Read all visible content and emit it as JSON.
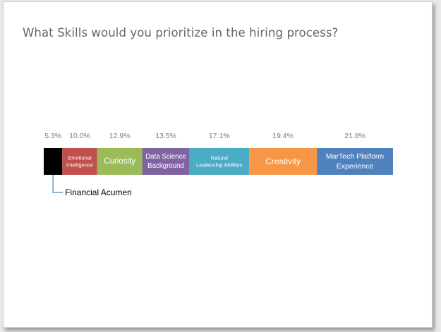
{
  "title": "What Skills would you prioritize in the hiring process?",
  "chart_data": {
    "type": "bar",
    "orientation": "horizontal-stacked-100",
    "title": "What Skills would you prioritize in the hiring process?",
    "categories": [
      "Financial Acumen",
      "Emotional Intelligence",
      "Curiosity",
      "Data Science Background",
      "Natural Leadership Abilities",
      "Creativity",
      "MarTech Platform Experience"
    ],
    "values": [
      5.3,
      10.0,
      12.9,
      13.5,
      17.1,
      19.4,
      21.8
    ],
    "value_labels": [
      "5.3%",
      "10.0%",
      "12.9%",
      "13.5%",
      "17.1%",
      "19.4%",
      "21.8%"
    ],
    "segment_label_lines": [
      [],
      [
        "Emotional",
        "Intelligence"
      ],
      [
        "Curiosity"
      ],
      [
        "Data Science",
        "Background"
      ],
      [
        "Natural",
        "Leadership Abilities"
      ],
      [
        "Creativity"
      ],
      [
        "MarTech Platform",
        "Experience"
      ]
    ],
    "colors": [
      "#000000",
      "#c0504d",
      "#9bbb59",
      "#8064a2",
      "#4bacc6",
      "#f79646",
      "#4f81bd"
    ],
    "callout": "Financial Acumen",
    "callout_color": "#4f81bd",
    "xlabel": "",
    "ylabel": "",
    "grid": false,
    "legend": "none"
  }
}
